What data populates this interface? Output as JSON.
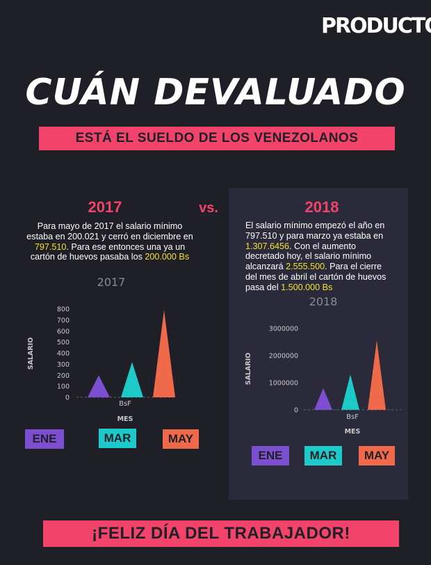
{
  "brand": {
    "logo_text": "PRODUCTO"
  },
  "header": {
    "title": "CUÁN DEVALUADO",
    "subtitle": "ESTÁ EL SUELDO DE LOS VENEZOLANOS"
  },
  "comparison": {
    "vs_label": "vs."
  },
  "left_section": {
    "year": "2017",
    "paragraph_parts": [
      {
        "text": "Para mayo de 2017 el salario mínimo estaba en 200.021 y cerró en diciembre en ",
        "highlight": false
      },
      {
        "text": "797.510",
        "highlight": true
      },
      {
        "text": ". Para ese entonces una  ya  un cartón de huevos pasaba los ",
        "highlight": false
      },
      {
        "text": "200.000 Bs",
        "highlight": true
      }
    ]
  },
  "right_section": {
    "year": "2018",
    "paragraph_parts": [
      {
        "text": "El salario mínimo empezó el año en 797.510 y para marzo ya estaba en ",
        "highlight": false
      },
      {
        "text": "1.307.6456",
        "highlight": true
      },
      {
        "text": ". Con el aumento decretado hoy, el salario mínimo alcanzará ",
        "highlight": false
      },
      {
        "text": "2.555.500",
        "highlight": true
      },
      {
        "text": ". Para el cierre del mes de abril el cartón de huevos pasa del ",
        "highlight": false
      },
      {
        "text": "1.500.000 Bs",
        "highlight": true
      }
    ]
  },
  "chart_data": [
    {
      "type": "area",
      "title": "2017",
      "xlabel": "MES",
      "ylabel": "SALARIO",
      "x_tick_label": "BsF",
      "categories": [
        "ENE",
        "MAR",
        "MAY"
      ],
      "values": [
        200,
        320,
        790
      ],
      "colors": [
        "#7b4fcf",
        "#1ec9c9",
        "#ef6a4b"
      ],
      "ylim": [
        0,
        800
      ],
      "yticks": [
        "800",
        "700",
        "600",
        "500",
        "400",
        "300",
        "200",
        "100",
        "0"
      ],
      "ytick_values": [
        800,
        700,
        600,
        500,
        400,
        300,
        200,
        100,
        0
      ],
      "grid": false
    },
    {
      "type": "area",
      "title": "2018",
      "xlabel": "MES",
      "ylabel": "SALARIO",
      "x_tick_label": "BsF",
      "categories": [
        "ENE",
        "MAR",
        "MAY"
      ],
      "values": [
        800000,
        1300000,
        2550000
      ],
      "colors": [
        "#7b4fcf",
        "#1ec9c9",
        "#ef6a4b"
      ],
      "ylim": [
        0,
        3000000
      ],
      "yticks": [
        "3000000",
        "2000000",
        "1000000",
        "0"
      ],
      "ytick_values": [
        3000000,
        2000000,
        1000000,
        0
      ],
      "grid": false
    }
  ],
  "legend": {
    "items": [
      {
        "label": "ENE",
        "color": "#7b4fcf"
      },
      {
        "label": "MAR",
        "color": "#1ec9c9"
      },
      {
        "label": "MAY",
        "color": "#ef6a4b"
      }
    ]
  },
  "footer": {
    "text": "¡FELIZ DÍA DEL TRABAJADOR!"
  }
}
